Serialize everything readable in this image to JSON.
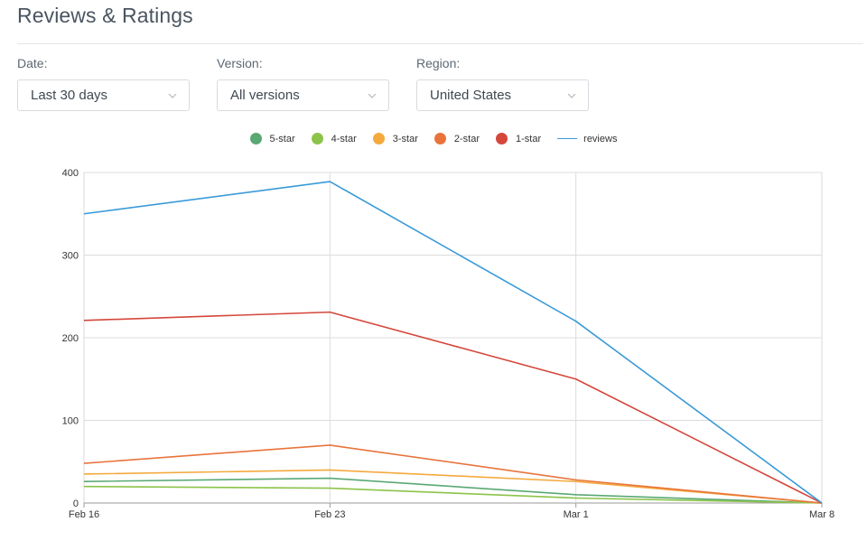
{
  "header": {
    "title": "Reviews & Ratings"
  },
  "filters": [
    {
      "label": "Date:",
      "value": "Last 30 days"
    },
    {
      "label": "Version:",
      "value": "All versions"
    },
    {
      "label": "Region:",
      "value": "United States"
    }
  ],
  "icons": {
    "dropdown": "chevron-down-icon"
  },
  "chart_data": {
    "type": "line",
    "categories": [
      "Feb 16",
      "Feb 23",
      "Mar 1",
      "Mar 8"
    ],
    "ylim": [
      0,
      400
    ],
    "yticks": [
      0,
      100,
      200,
      300,
      400
    ],
    "grid": true,
    "legend": "top-center",
    "series": [
      {
        "name": "5-star",
        "color": "#5aa874",
        "values": [
          26,
          30,
          10,
          0
        ]
      },
      {
        "name": "4-star",
        "color": "#8cc34a",
        "values": [
          20,
          18,
          6,
          0
        ]
      },
      {
        "name": "3-star",
        "color": "#f4a93d",
        "values": [
          35,
          40,
          26,
          0
        ]
      },
      {
        "name": "2-star",
        "color": "#e8743b",
        "values": [
          48,
          70,
          28,
          0
        ]
      },
      {
        "name": "1-star",
        "color": "#d4473b",
        "values": [
          221,
          231,
          150,
          0
        ]
      },
      {
        "name": "reviews",
        "color": "#3a9ad9",
        "values": [
          350,
          389,
          220,
          0
        ],
        "style": "line"
      }
    ]
  }
}
